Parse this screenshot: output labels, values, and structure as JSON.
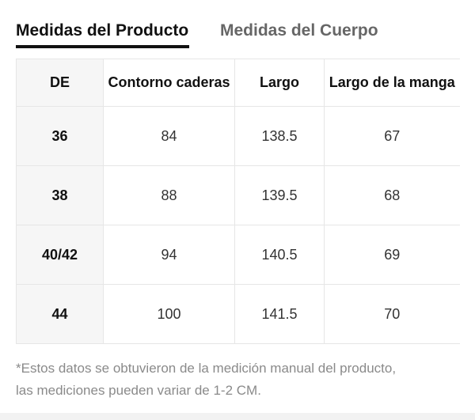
{
  "tabs": [
    {
      "label": "Medidas del Producto",
      "active": true
    },
    {
      "label": "Medidas del Cuerpo",
      "active": false
    }
  ],
  "table": {
    "headers": [
      "DE",
      "Contorno caderas",
      "Largo",
      "Largo de la manga"
    ],
    "rows": [
      [
        "36",
        "84",
        "138.5",
        "67"
      ],
      [
        "38",
        "88",
        "139.5",
        "68"
      ],
      [
        "40/42",
        "94",
        "140.5",
        "69"
      ],
      [
        "44",
        "100",
        "141.5",
        "70"
      ]
    ]
  },
  "note": {
    "line1": "*Estos datos se obtuvieron de la medición manual del producto,",
    "line2": "las mediciones pueden variar de 1-2 CM."
  },
  "colors": {
    "active_tab": "#111111",
    "inactive_tab": "#666666",
    "header_bg": "#f6f6f6",
    "border": "#e6e6e6",
    "note_text": "#8a8a8a"
  }
}
